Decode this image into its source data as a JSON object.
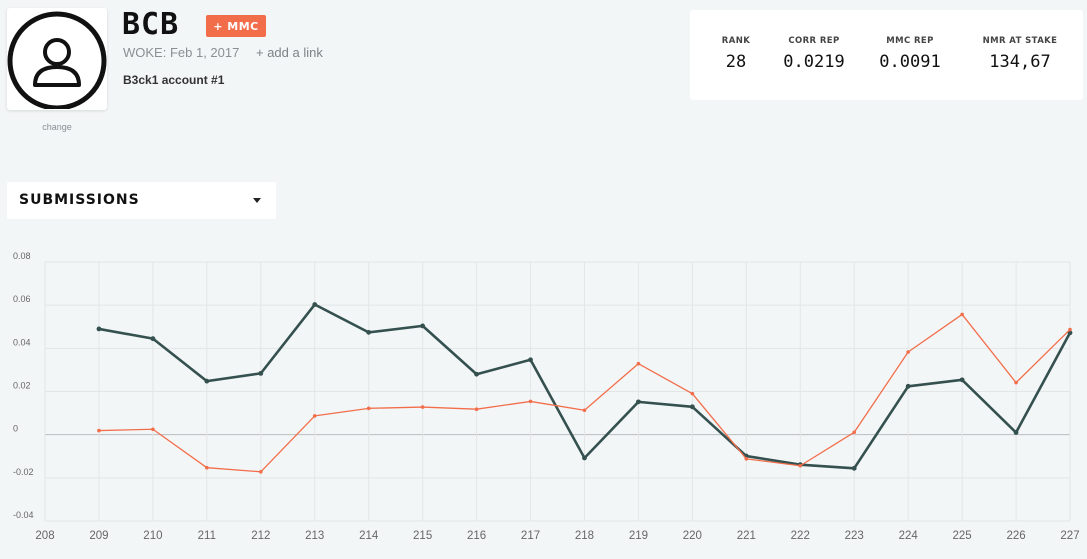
{
  "profile": {
    "avatar_icon": "user-icon",
    "change_label": "change",
    "name": "BCB",
    "badge": "+ MMC",
    "woke": "WOKE: Feb 1, 2017",
    "add_link": "+ add a link",
    "bio": "B3ck1 account #1"
  },
  "stats": {
    "rank": {
      "label": "RANK",
      "value": "28"
    },
    "corr_rep": {
      "label": "CORR REP",
      "value": "0.0219"
    },
    "mmc_rep": {
      "label": "MMC REP",
      "value": "0.0091"
    },
    "nmr_stake": {
      "label": "NMR AT STAKE",
      "value": "134,67"
    }
  },
  "submissions": {
    "label": "SUBMISSIONS"
  },
  "colors": {
    "corr": "#34504f",
    "mmc": "#f26e4b",
    "badge": "#f26e4b"
  },
  "chart_data": {
    "type": "line",
    "x": [
      208,
      209,
      210,
      211,
      212,
      213,
      214,
      215,
      216,
      217,
      218,
      219,
      220,
      221,
      222,
      223,
      224,
      225,
      226,
      227
    ],
    "xlim": [
      208,
      227
    ],
    "ylim": [
      -0.04,
      0.08
    ],
    "yticks": [
      0.08,
      0.06,
      0.04,
      0.02,
      0,
      -0.02,
      -0.04
    ],
    "ytick_labels": [
      "0.08",
      "0.06",
      "0.04",
      "0.02",
      "0",
      "-0.02",
      "-0.04"
    ],
    "grid": true,
    "series": [
      {
        "color": "#34504f",
        "x": [
          209,
          210,
          211,
          212,
          213,
          214,
          215,
          216,
          217,
          218,
          219,
          220,
          221,
          222,
          223,
          224,
          225,
          226,
          227
        ],
        "values": [
          0.049,
          0.0445,
          0.0248,
          0.0284,
          0.0603,
          0.0474,
          0.0504,
          0.028,
          0.0347,
          -0.0108,
          0.0152,
          0.0129,
          -0.0099,
          -0.0139,
          -0.0156,
          0.0224,
          0.0254,
          0.001,
          0.0472
        ]
      },
      {
        "color": "#f26e4b",
        "x": [
          209,
          210,
          211,
          212,
          213,
          214,
          215,
          216,
          217,
          218,
          219,
          220,
          221,
          222,
          223,
          224,
          225,
          226,
          227
        ],
        "values": [
          0.0019,
          0.0025,
          -0.0153,
          -0.0172,
          0.0087,
          0.0122,
          0.0128,
          0.0118,
          0.0154,
          0.0113,
          0.0329,
          0.019,
          -0.0112,
          -0.0144,
          0.0011,
          0.0383,
          0.0557,
          0.0241,
          0.0487
        ]
      }
    ]
  }
}
